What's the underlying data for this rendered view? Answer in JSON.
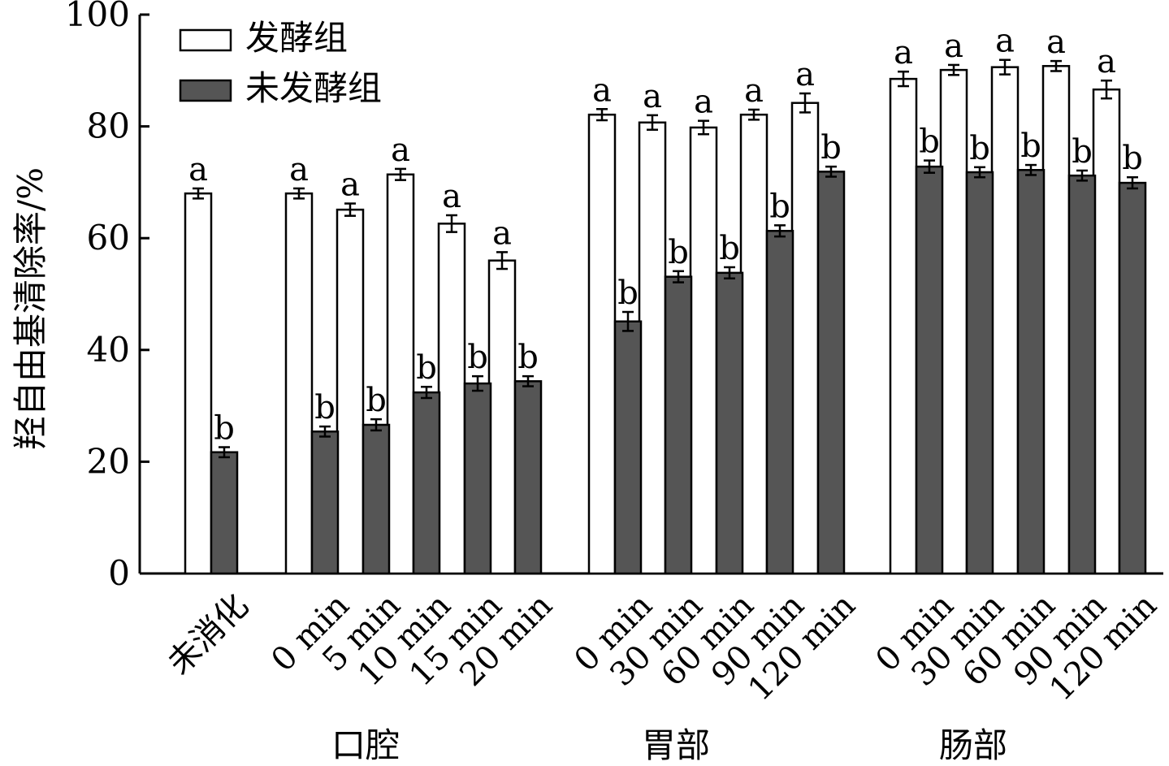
{
  "chart_data": {
    "type": "bar",
    "title": "",
    "ylabel": "羟自由基清除率/%",
    "xlabel": "",
    "ylim": [
      0,
      100
    ],
    "yticks": [
      "0",
      "20",
      "40",
      "60",
      "80",
      "100"
    ],
    "legend": {
      "placement": "top-left",
      "entries": [
        "发酵组",
        "未发酵组"
      ]
    },
    "colors": {
      "发酵组": "#ffffff",
      "未发酵组": "#555555"
    },
    "groups": [
      {
        "label": "",
        "categories": [
          "未消化"
        ]
      },
      {
        "label": "口腔",
        "categories": [
          "0 min",
          "5 min",
          "10 min",
          "15 min",
          "20 min"
        ]
      },
      {
        "label": "胃部",
        "categories": [
          "0 min",
          "30 min",
          "60 min",
          "90 min",
          "120 min"
        ]
      },
      {
        "label": "肠部",
        "categories": [
          "0 min",
          "30 min",
          "60 min",
          "90 min",
          "120 min"
        ]
      }
    ],
    "series": [
      {
        "name": "发酵组",
        "values": [
          68.0,
          68.0,
          65.1,
          71.4,
          62.6,
          56.0,
          82.1,
          80.7,
          79.8,
          82.1,
          84.2,
          88.5,
          90.1,
          90.6,
          90.8,
          86.6
        ],
        "errors": [
          0.9,
          0.9,
          1.1,
          1.0,
          1.5,
          1.5,
          1.0,
          1.3,
          1.2,
          0.9,
          1.7,
          1.3,
          0.9,
          1.3,
          0.9,
          1.6
        ],
        "labels": [
          "a",
          "a",
          "a",
          "a",
          "a",
          "a",
          "a",
          "a",
          "a",
          "a",
          "a",
          "a",
          "a",
          "a",
          "a",
          "a"
        ]
      },
      {
        "name": "未发酵组",
        "values": [
          21.7,
          25.4,
          26.6,
          32.4,
          34.0,
          34.4,
          45.1,
          53.1,
          53.8,
          61.3,
          71.9,
          72.8,
          71.8,
          72.2,
          71.2,
          69.9
        ],
        "errors": [
          0.9,
          0.9,
          1.0,
          1.0,
          1.3,
          0.9,
          1.7,
          1.0,
          1.0,
          1.0,
          0.9,
          1.1,
          0.9,
          0.9,
          0.9,
          1.0
        ],
        "labels": [
          "b",
          "b",
          "b",
          "b",
          "b",
          "b",
          "b",
          "b",
          "b",
          "b",
          "b",
          "b",
          "b",
          "b",
          "b",
          "b"
        ]
      }
    ]
  }
}
